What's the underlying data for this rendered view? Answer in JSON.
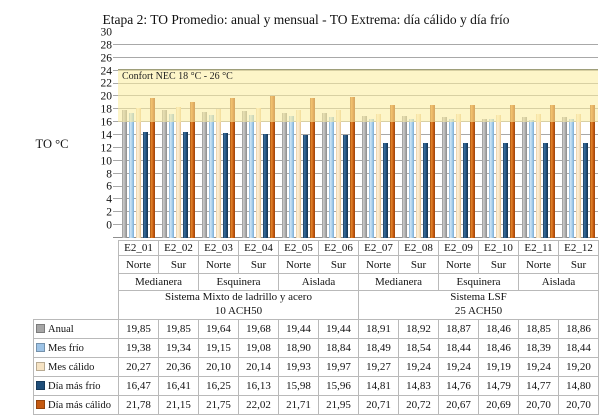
{
  "title": "Etapa 2: TO Promedio: anual y mensual - TO Extrema: día cálido y día frío",
  "chart_data": {
    "type": "bar",
    "title": "Etapa 2: TO Promedio: anual y mensual - TO Extrema: día cálido y día frío",
    "ylabel": "TO °C",
    "ylim": [
      0,
      30
    ],
    "ytick_step": 2,
    "grid": true,
    "legend_position": "table-left",
    "band": {
      "label": "Confort NEC 18 °C - 26 °C",
      "from": 18,
      "to": 26,
      "color": "#FCEEA0"
    },
    "categories": [
      "E2_01",
      "E2_02",
      "E2_03",
      "E2_04",
      "E2_05",
      "E2_06",
      "E2_07",
      "E2_08",
      "E2_09",
      "E2_10",
      "E2_11",
      "E2_12"
    ],
    "orientations": [
      "Norte",
      "Sur",
      "Norte",
      "Sur",
      "Norte",
      "Sur",
      "Norte",
      "Sur",
      "Norte",
      "Sur",
      "Norte",
      "Sur"
    ],
    "position_groups": [
      {
        "label": "Medianera",
        "span": 2
      },
      {
        "label": "Esquinera",
        "span": 2
      },
      {
        "label": "Aislada",
        "span": 2
      },
      {
        "label": "Medianera",
        "span": 2
      },
      {
        "label": "Esquinera",
        "span": 2
      },
      {
        "label": "Aislada",
        "span": 2
      }
    ],
    "system_groups": [
      {
        "line1": "Sistema Mixto de ladrillo y acero",
        "line2": "10 ACH50",
        "span": 6
      },
      {
        "line1": "Sistema LSF",
        "line2": "25 ACH50",
        "span": 6
      }
    ],
    "series": [
      {
        "name": "Anual",
        "color": "#A6A6A6",
        "values": [
          19.85,
          19.85,
          19.64,
          19.68,
          19.44,
          19.44,
          18.91,
          18.92,
          18.87,
          18.46,
          18.85,
          18.86
        ]
      },
      {
        "name": "Mes frío",
        "color": "#9DC3E6",
        "values": [
          19.38,
          19.34,
          19.15,
          19.08,
          18.9,
          18.84,
          18.49,
          18.54,
          18.44,
          18.46,
          18.39,
          18.44
        ]
      },
      {
        "name": "Mes cálido",
        "color": "#F6E3C3",
        "values": [
          20.27,
          20.36,
          20.1,
          20.14,
          19.93,
          19.97,
          19.27,
          19.24,
          19.24,
          19.19,
          19.24,
          19.2
        ]
      },
      {
        "name": "Día más frío",
        "color": "#1F4E79",
        "values": [
          16.47,
          16.41,
          16.25,
          16.13,
          15.98,
          15.96,
          14.81,
          14.83,
          14.76,
          14.79,
          14.77,
          14.8
        ]
      },
      {
        "name": "Día más cálido",
        "color": "#C55A11",
        "values": [
          21.78,
          21.15,
          21.75,
          22.02,
          21.71,
          21.95,
          20.71,
          20.72,
          20.67,
          20.69,
          20.7,
          20.7
        ]
      }
    ]
  }
}
